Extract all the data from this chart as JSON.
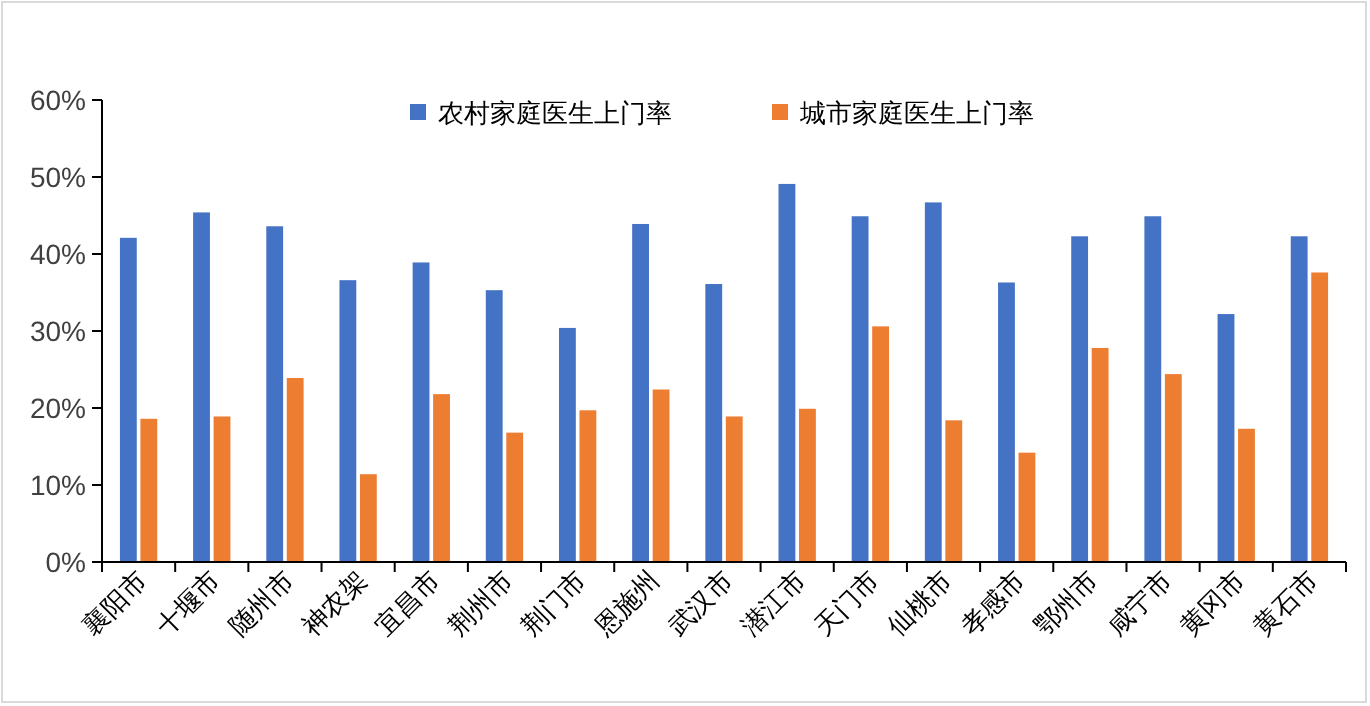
{
  "chart_data": {
    "type": "bar",
    "categories": [
      "襄阳市",
      "十堰市",
      "随州市",
      "神农架",
      "宜昌市",
      "荆州市",
      "荆门市",
      "恩施州",
      "武汉市",
      "潜江市",
      "天门市",
      "仙桃市",
      "孝感市",
      "鄂州市",
      "咸宁市",
      "黄冈市",
      "黄石市"
    ],
    "series": [
      {
        "name": "农村家庭医生上门率",
        "color": "#4472c4",
        "values": [
          42.1,
          45.4,
          43.6,
          36.6,
          38.9,
          35.3,
          30.4,
          43.9,
          36.1,
          49.1,
          44.9,
          46.7,
          36.3,
          42.3,
          44.9,
          32.2,
          42.3
        ]
      },
      {
        "name": "城市家庭医生上门率",
        "color": "#ed7d31",
        "values": [
          18.6,
          18.9,
          23.9,
          11.4,
          21.8,
          16.8,
          19.7,
          22.4,
          18.9,
          19.9,
          30.6,
          18.4,
          14.2,
          27.8,
          24.4,
          17.3,
          37.6
        ]
      }
    ],
    "ylim": [
      0,
      60
    ],
    "yticks": [
      {
        "value": 0,
        "label": "0%"
      },
      {
        "value": 10,
        "label": "10%"
      },
      {
        "value": 20,
        "label": "20%"
      },
      {
        "value": 30,
        "label": "30%"
      },
      {
        "value": 40,
        "label": "40%"
      },
      {
        "value": 50,
        "label": "50%"
      },
      {
        "value": 60,
        "label": "60%"
      }
    ],
    "grid": false,
    "legend": "top"
  }
}
